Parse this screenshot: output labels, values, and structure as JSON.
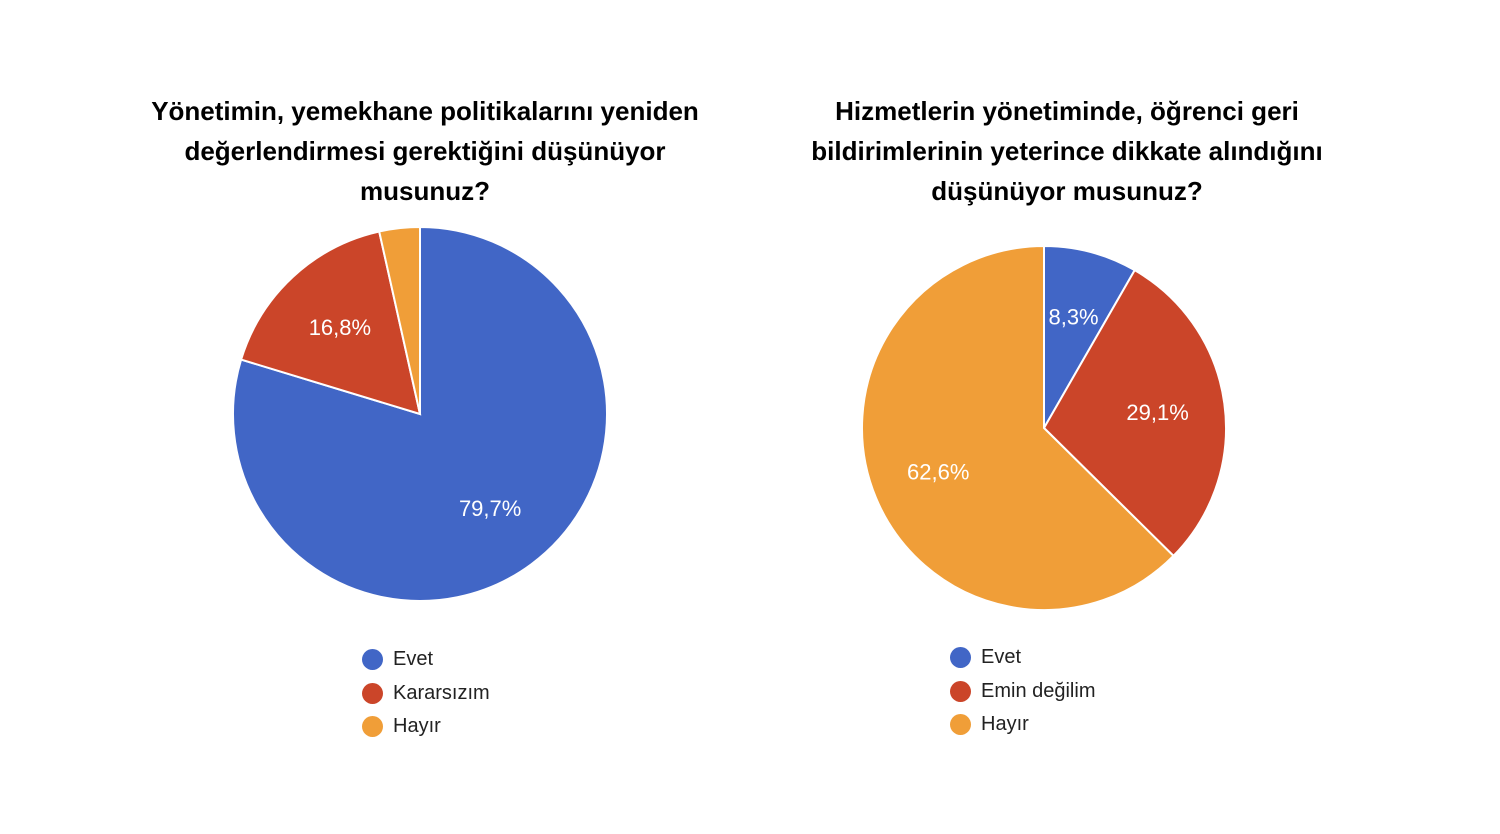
{
  "chart_data": [
    {
      "type": "pie",
      "title": "Yönetimin, yemekhane politikalarını yeniden değerlendirmesi gerektiğini düşünüyor musunuz?",
      "categories": [
        "Evet",
        "Kararsızım",
        "Hayır"
      ],
      "values": [
        79.7,
        16.8,
        3.5
      ],
      "labels": [
        "79,7%",
        "16,8%",
        ""
      ],
      "colors": [
        "#4166C6",
        "#CB4529",
        "#F09E38"
      ],
      "start_angle_deg": 90,
      "legend": "bottom"
    },
    {
      "type": "pie",
      "title": "Hizmetlerin yönetiminde, öğrenci geri bildirimlerinin yeterince dikkate alındığını düşünüyor musunuz?",
      "categories": [
        "Evet",
        "Emin değilim",
        "Hayır"
      ],
      "values": [
        8.3,
        29.1,
        62.6
      ],
      "labels": [
        "8,3%",
        "29,1%",
        "62,6%"
      ],
      "colors": [
        "#4166C6",
        "#CB4529",
        "#F09E38"
      ],
      "start_angle_deg": 90,
      "legend": "bottom"
    }
  ]
}
